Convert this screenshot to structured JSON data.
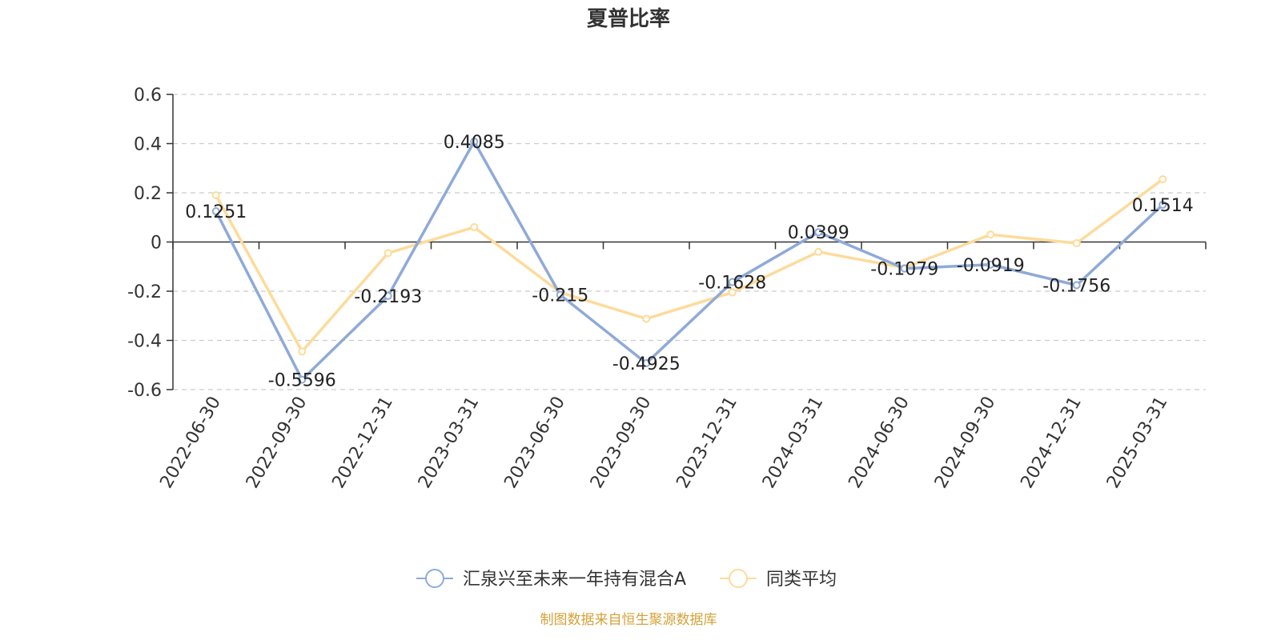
{
  "chart_data": {
    "type": "line",
    "title": "夏普比率",
    "x": [
      "2022-06-30",
      "2022-09-30",
      "2022-12-31",
      "2023-03-31",
      "2023-06-30",
      "2023-09-30",
      "2023-12-31",
      "2024-03-31",
      "2024-06-30",
      "2024-09-30",
      "2024-12-31",
      "2025-03-31"
    ],
    "ylim": [
      -0.6,
      0.6
    ],
    "yticks": [
      0.6,
      0.4,
      0.2,
      0,
      -0.2,
      -0.4,
      -0.6
    ],
    "ytick_labels": [
      "0.6",
      "0.4",
      "0.2",
      "0",
      "-0.2",
      "-0.4",
      "-0.6"
    ],
    "grid": true,
    "legend_position": "bottom-center",
    "series": [
      {
        "name": "汇泉兴至未来一年持有混合A",
        "color": "#8eaad8",
        "values": [
          0.1251,
          -0.5596,
          -0.2193,
          0.4085,
          -0.215,
          -0.4925,
          -0.1628,
          0.0399,
          -0.1079,
          -0.0919,
          -0.1756,
          0.1514
        ],
        "data_labels": [
          "0.1251",
          "-0.5596",
          "-0.2193",
          "0.4085",
          "-0.215",
          "-0.4925",
          "-0.1628",
          "0.0399",
          "-0.1079",
          "-0.0919",
          "-0.1756",
          "0.1514"
        ]
      },
      {
        "name": "同类平均",
        "color": "#fddb9b",
        "values": [
          0.19,
          -0.445,
          -0.045,
          0.06,
          -0.205,
          -0.312,
          -0.205,
          -0.04,
          -0.105,
          0.03,
          -0.005,
          0.255
        ]
      }
    ]
  },
  "source_text": "制图数据来自恒生聚源数据库"
}
